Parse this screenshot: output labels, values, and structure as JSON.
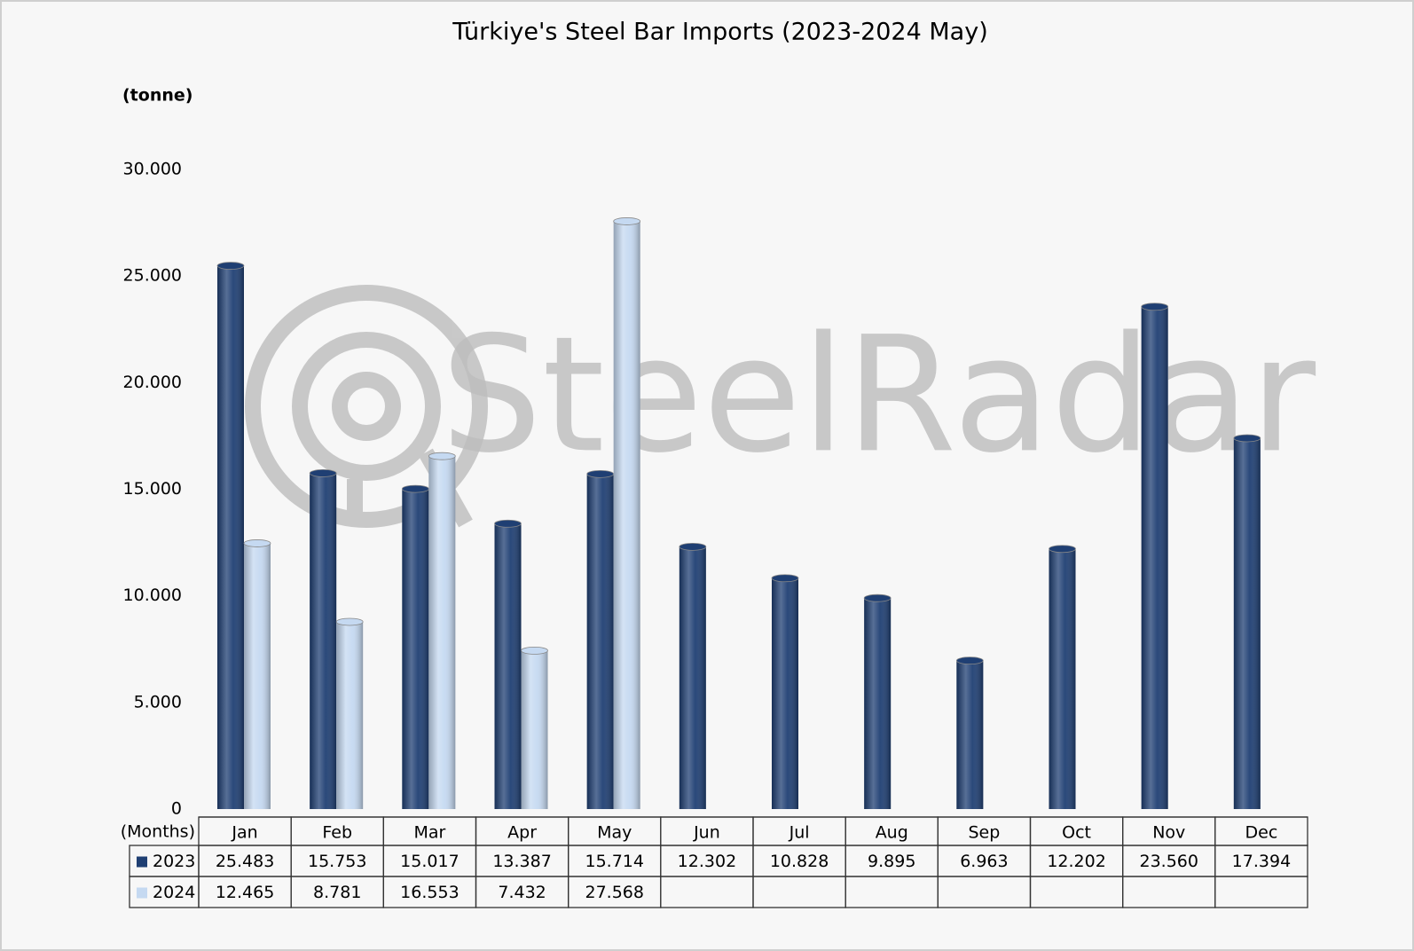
{
  "chart_data": {
    "type": "bar",
    "title": "Türkiye's Steel Bar Imports (2023-2024 May)",
    "y_label": "(tonne)",
    "x_label": "(Months)",
    "watermark": "SteelRadar",
    "categories": [
      "Jan",
      "Feb",
      "Mar",
      "Apr",
      "May",
      "Jun",
      "Jul",
      "Aug",
      "Sep",
      "Oct",
      "Nov",
      "Dec"
    ],
    "series": [
      {
        "name": "2023",
        "color": "#1f3f73",
        "values": [
          25483,
          15753,
          15017,
          13387,
          15714,
          12302,
          10828,
          9895,
          6963,
          12202,
          23560,
          17394
        ],
        "value_labels": [
          "25.483",
          "15.753",
          "15.017",
          "13.387",
          "15.714",
          "12.302",
          "10.828",
          "9.895",
          "6.963",
          "12.202",
          "23.560",
          "17.394"
        ]
      },
      {
        "name": "2024",
        "color": "#c5d9f1",
        "values": [
          12465,
          8781,
          16553,
          7432,
          27568,
          null,
          null,
          null,
          null,
          null,
          null,
          null
        ],
        "value_labels": [
          "12.465",
          "8.781",
          "16.553",
          "7.432",
          "27.568",
          null,
          null,
          null,
          null,
          null,
          null,
          null
        ]
      }
    ],
    "ylim": [
      0,
      30000
    ],
    "yticks": [
      0,
      {
        "value": 5000,
        "label": "5.000"
      },
      {
        "value": 10000,
        "label": "10.000"
      },
      {
        "value": 15000,
        "label": "15.000"
      },
      {
        "value": 20000,
        "label": "20.000"
      },
      {
        "value": 25000,
        "label": "25.000"
      },
      {
        "value": 30000,
        "label": "30.000"
      }
    ],
    "grid": false
  }
}
